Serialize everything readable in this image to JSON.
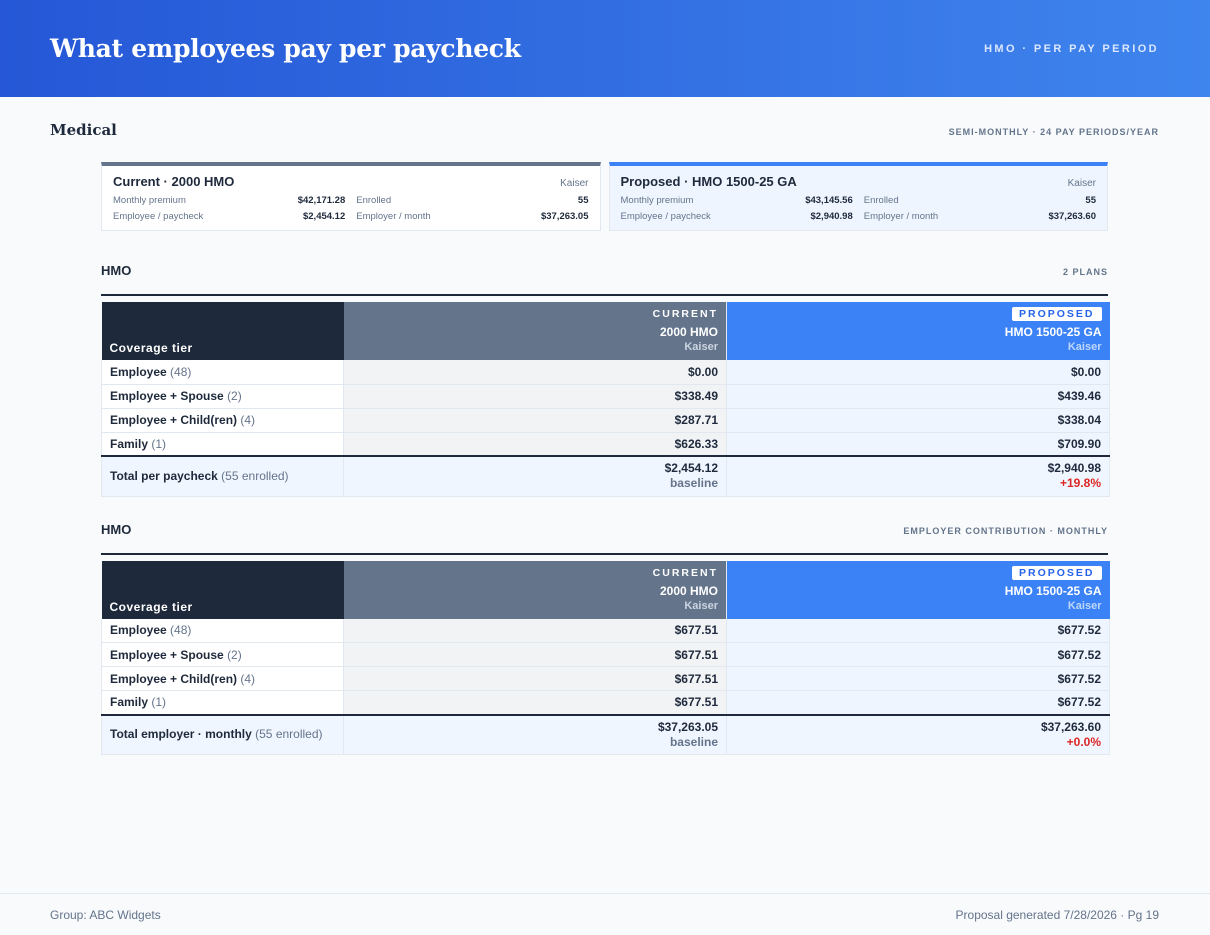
{
  "header": {
    "title": "What employees pay per paycheck",
    "tag": "HMO · PER PAY PERIOD"
  },
  "section": {
    "title": "Medical",
    "tag": "SEMI-MONTHLY · 24 PAY PERIODS/YEAR"
  },
  "summary": {
    "current": {
      "name": "Current · 2000 HMO",
      "carrier": "Kaiser",
      "monthly_premium_label": "Monthly premium",
      "monthly_premium": "$42,171.28",
      "enrolled_label": "Enrolled",
      "enrolled": "55",
      "employee_label": "Employee / paycheck",
      "employee": "$2,454.12",
      "employer_label": "Employer / month",
      "employer": "$37,263.05"
    },
    "proposed": {
      "name": "Proposed · HMO 1500-25 GA",
      "carrier": "Kaiser",
      "monthly_premium_label": "Monthly premium",
      "monthly_premium": "$43,145.56",
      "enrolled_label": "Enrolled",
      "enrolled": "55",
      "employee_label": "Employee / paycheck",
      "employee": "$2,940.98",
      "employer_label": "Employer / month",
      "employer": "$37,263.60"
    }
  },
  "table1": {
    "title": "HMO",
    "tag": "2 PLANS",
    "header": {
      "tier_label": "Coverage tier",
      "current_label": "CURRENT",
      "current_plan": "2000 HMO",
      "current_carrier": "Kaiser",
      "proposed_label": "PROPOSED",
      "proposed_plan": "HMO 1500-25 GA",
      "proposed_carrier": "Kaiser"
    },
    "rows": [
      {
        "tier": "Employee",
        "count": "(48)",
        "current": "$0.00",
        "proposed": "$0.00"
      },
      {
        "tier": "Employee + Spouse",
        "count": "(2)",
        "current": "$338.49",
        "proposed": "$439.46"
      },
      {
        "tier": "Employee + Child(ren)",
        "count": "(4)",
        "current": "$287.71",
        "proposed": "$338.04"
      },
      {
        "tier": "Family",
        "count": "(1)",
        "current": "$626.33",
        "proposed": "$709.90"
      }
    ],
    "total": {
      "label": "Total per paycheck",
      "note": "(55 enrolled)",
      "current": "$2,454.12",
      "current_sub": "baseline",
      "proposed": "$2,940.98",
      "proposed_sub": "+19.8%"
    }
  },
  "table2": {
    "title": "HMO",
    "tag": "EMPLOYER CONTRIBUTION · MONTHLY",
    "header": {
      "tier_label": "Coverage tier",
      "current_label": "CURRENT",
      "current_plan": "2000 HMO",
      "current_carrier": "Kaiser",
      "proposed_label": "PROPOSED",
      "proposed_plan": "HMO 1500-25 GA",
      "proposed_carrier": "Kaiser"
    },
    "rows": [
      {
        "tier": "Employee",
        "count": "(48)",
        "current": "$677.51",
        "proposed": "$677.52"
      },
      {
        "tier": "Employee + Spouse",
        "count": "(2)",
        "current": "$677.51",
        "proposed": "$677.52"
      },
      {
        "tier": "Employee + Child(ren)",
        "count": "(4)",
        "current": "$677.51",
        "proposed": "$677.52"
      },
      {
        "tier": "Family",
        "count": "(1)",
        "current": "$677.51",
        "proposed": "$677.52"
      }
    ],
    "total": {
      "label": "Total employer · monthly",
      "note": "(55 enrolled)",
      "current": "$37,263.05",
      "current_sub": "baseline",
      "proposed": "$37,263.60",
      "proposed_sub": "+0.0%"
    }
  },
  "footer": {
    "group": "Group: ABC Widgets",
    "generated": "Proposal generated 7/28/2026 · Pg 19"
  },
  "colors": {
    "header_start": "#2557d6",
    "header_end": "#3f85ee",
    "current": "#64748b",
    "proposed": "#3b82f6",
    "dark": "#1e293b",
    "delta": "#dc2626"
  }
}
